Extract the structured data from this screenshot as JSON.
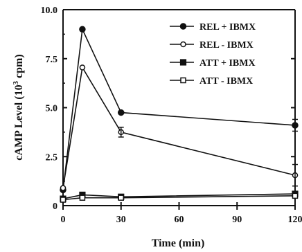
{
  "chart_data": {
    "type": "line",
    "title": "",
    "xlabel": "Time (min)",
    "ylabel": "cAMP Level (10",
    "ylabel_sup": "3",
    "ylabel_suffix": " cpm)",
    "x_ticks": [
      "0",
      "30",
      "60",
      "90",
      "120"
    ],
    "y_ticks": [
      "0",
      "2.5",
      "5.0",
      "7.5",
      "10.0"
    ],
    "xlim": [
      0,
      120
    ],
    "ylim": [
      0,
      10
    ],
    "x": [
      0,
      10,
      30,
      120
    ],
    "legend_position": "top-right",
    "grid": false,
    "series": [
      {
        "name": "REL + IBMX",
        "marker": "filled-circle",
        "values": [
          0.8,
          9.0,
          4.75,
          4.1
        ]
      },
      {
        "name": "REL - IBMX",
        "marker": "open-circle",
        "values": [
          0.9,
          7.05,
          3.75,
          1.55
        ]
      },
      {
        "name": "ATT + IBMX",
        "marker": "filled-square",
        "values": [
          0.35,
          0.55,
          0.45,
          0.6
        ]
      },
      {
        "name": "ATT - IBMX",
        "marker": "open-square",
        "values": [
          0.3,
          0.4,
          0.4,
          0.5
        ]
      }
    ],
    "colors": {
      "ink": "#111111",
      "background": "#ffffff"
    }
  }
}
